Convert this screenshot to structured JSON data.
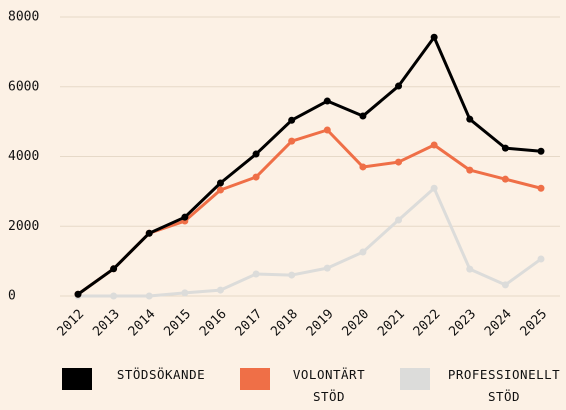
{
  "chart_data": {
    "type": "line",
    "x": [
      "2012",
      "2013",
      "2014",
      "2015",
      "2016",
      "2017",
      "2018",
      "2019",
      "2020",
      "2021",
      "2022",
      "2023",
      "2024",
      "2025"
    ],
    "series": [
      {
        "name": "STÖDSÖKANDE",
        "color": "#000000",
        "values": [
          50,
          780,
          1800,
          2260,
          3240,
          4070,
          5040,
          5590,
          5160,
          6020,
          7420,
          5070,
          4240,
          4150
        ]
      },
      {
        "name": "VOLONTÄRT STÖD",
        "color": "#ef6f47",
        "values": [
          50,
          780,
          1800,
          2150,
          3040,
          3410,
          4440,
          4760,
          3700,
          3840,
          4330,
          3610,
          3350,
          3090
        ]
      },
      {
        "name": "PROFESSIONELLT STÖD",
        "color": "#dcdcda",
        "values": [
          0,
          0,
          0,
          90,
          170,
          630,
          600,
          800,
          1260,
          2180,
          3090,
          770,
          320,
          1060
        ]
      }
    ],
    "ylim": [
      0,
      8000
    ],
    "yticks": [
      0,
      2000,
      4000,
      6000,
      8000
    ],
    "grid": true
  }
}
